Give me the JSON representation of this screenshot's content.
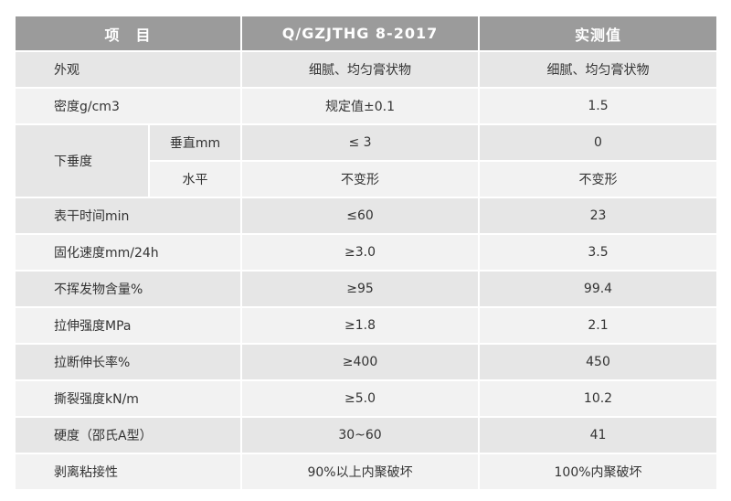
{
  "header": {
    "item": "项　目",
    "standard": "Q/GZJTHG 8-2017",
    "measured": "实测值"
  },
  "sag": {
    "label": "下垂度",
    "sub": [
      {
        "label": "垂直mm",
        "standard": "≤ 3",
        "measured": "0"
      },
      {
        "label": "水平",
        "standard": "不变形",
        "measured": "不变形"
      }
    ]
  },
  "rows_top": [
    {
      "label": "外观",
      "standard": "细腻、均匀膏状物",
      "measured": "细腻、均匀膏状物"
    },
    {
      "label": "密度g/cm3",
      "standard": "规定值±0.1",
      "measured": "1.5"
    }
  ],
  "rows": [
    {
      "label": "表干时间min",
      "standard": "≤60",
      "measured": "23"
    },
    {
      "label": "固化速度mm/24h",
      "standard": "≥3.0",
      "measured": "3.5"
    },
    {
      "label": "不挥发物含量%",
      "standard": "≥95",
      "measured": "99.4"
    },
    {
      "label": "拉伸强度MPa",
      "standard": "≥1.8",
      "measured": "2.1"
    },
    {
      "label": "拉断伸长率%",
      "standard": "≥400",
      "measured": "450"
    },
    {
      "label": "撕裂强度kN/m",
      "standard": "≥5.0",
      "measured": "10.2"
    },
    {
      "label": "硬度（邵氏A型）",
      "standard": "30~60",
      "measured": "41"
    },
    {
      "label": "剥离粘接性",
      "standard": "90%以上内聚破坏",
      "measured": "100%内聚破坏"
    }
  ],
  "colors": {
    "header": "#9b9b9b",
    "row_dark": "#e6e6e6",
    "row_light": "#f2f2f2"
  }
}
